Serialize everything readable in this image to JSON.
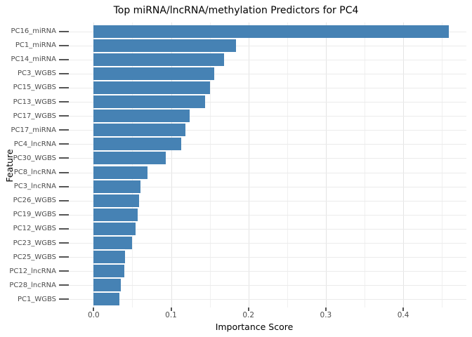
{
  "chart_data": {
    "type": "bar",
    "orientation": "horizontal",
    "title": "Top miRNA/lncRNA/methylation Predictors for PC4",
    "xlabel": "Importance Score",
    "ylabel": "Feature",
    "legend_position": "none",
    "grid_on": true,
    "categories": [
      "PC16_miRNA",
      "PC1_miRNA",
      "PC14_miRNA",
      "PC3_WGBS",
      "PC15_WGBS",
      "PC13_WGBS",
      "PC17_WGBS",
      "PC17_miRNA",
      "PC4_lncRNA",
      "PC30_WGBS",
      "PC8_lncRNA",
      "PC3_lncRNA",
      "PC26_WGBS",
      "PC19_WGBS",
      "PC12_WGBS",
      "PC23_WGBS",
      "PC25_WGBS",
      "PC12_lncRNA",
      "PC28_lncRNA",
      "PC1_WGBS"
    ],
    "values": [
      0.459,
      0.184,
      0.169,
      0.156,
      0.15,
      0.144,
      0.124,
      0.119,
      0.113,
      0.093,
      0.07,
      0.061,
      0.059,
      0.057,
      0.054,
      0.05,
      0.041,
      0.04,
      0.035,
      0.033
    ],
    "xlim": [
      -0.032,
      0.481
    ],
    "x_major_ticks": [
      0.0,
      0.1,
      0.2,
      0.3,
      0.4
    ],
    "x_major_tick_labels": [
      "0.0",
      "0.1",
      "0.2",
      "0.3",
      "0.4"
    ],
    "x_minor_ticks": [
      0.05,
      0.15,
      0.25,
      0.35,
      0.45
    ],
    "colors": {
      "bar": "#4682b4",
      "grid_major": "#e4e4e4",
      "grid_minor": "#f0f0f0",
      "grid_horizontal": "#ebebeb",
      "tick_text": "#4d4d4d",
      "axis_text": "#000000",
      "background": "#ffffff"
    }
  }
}
